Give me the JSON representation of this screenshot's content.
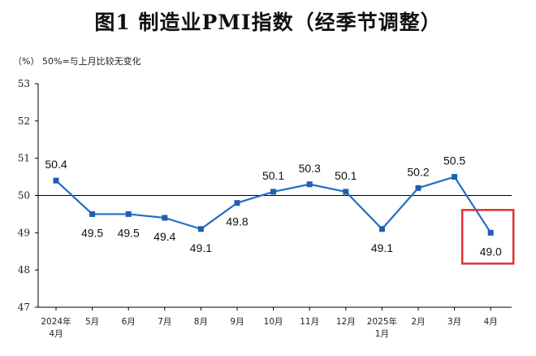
{
  "chart_data": {
    "type": "line",
    "title": "图1  制造业PMI指数（经季节调整）",
    "ylabel": "（%）",
    "reference_note": "50%=与上月比较无变化",
    "reference_value": 50,
    "ylim": [
      47,
      53
    ],
    "y_ticks": [
      "47",
      "48",
      "49",
      "50",
      "51",
      "52",
      "53"
    ],
    "categories": [
      "2024年4月",
      "5月",
      "6月",
      "7月",
      "8月",
      "9月",
      "10月",
      "11月",
      "12月",
      "2025年1月",
      "2月",
      "3月",
      "4月"
    ],
    "category_labels": [
      [
        "2024年",
        "4月"
      ],
      [
        "5月"
      ],
      [
        "6月"
      ],
      [
        "7月"
      ],
      [
        "8月"
      ],
      [
        "9月"
      ],
      [
        "10月"
      ],
      [
        "11月"
      ],
      [
        "12月"
      ],
      [
        "2025年",
        "1月"
      ],
      [
        "2月"
      ],
      [
        "3月"
      ],
      [
        "4月"
      ]
    ],
    "series": [
      {
        "values": [
          50.4,
          49.5,
          49.5,
          49.4,
          49.1,
          49.8,
          50.1,
          50.3,
          50.1,
          49.1,
          50.2,
          50.5,
          49.0
        ],
        "labels": [
          "50.4",
          "49.5",
          "49.5",
          "49.4",
          "49.1",
          "49.8",
          "50.1",
          "50.3",
          "50.1",
          "49.1",
          "50.2",
          "50.5",
          "49.0"
        ],
        "label_side": [
          "above",
          "below",
          "below",
          "below",
          "below",
          "below",
          "above",
          "above",
          "above",
          "below",
          "above",
          "above",
          "below"
        ]
      }
    ],
    "highlight_index": 12,
    "colors": {
      "line": "#1f6fc5",
      "marker": "#1f5fb0",
      "highlight": "#e03030",
      "axis": "#000000"
    },
    "grid": false
  }
}
